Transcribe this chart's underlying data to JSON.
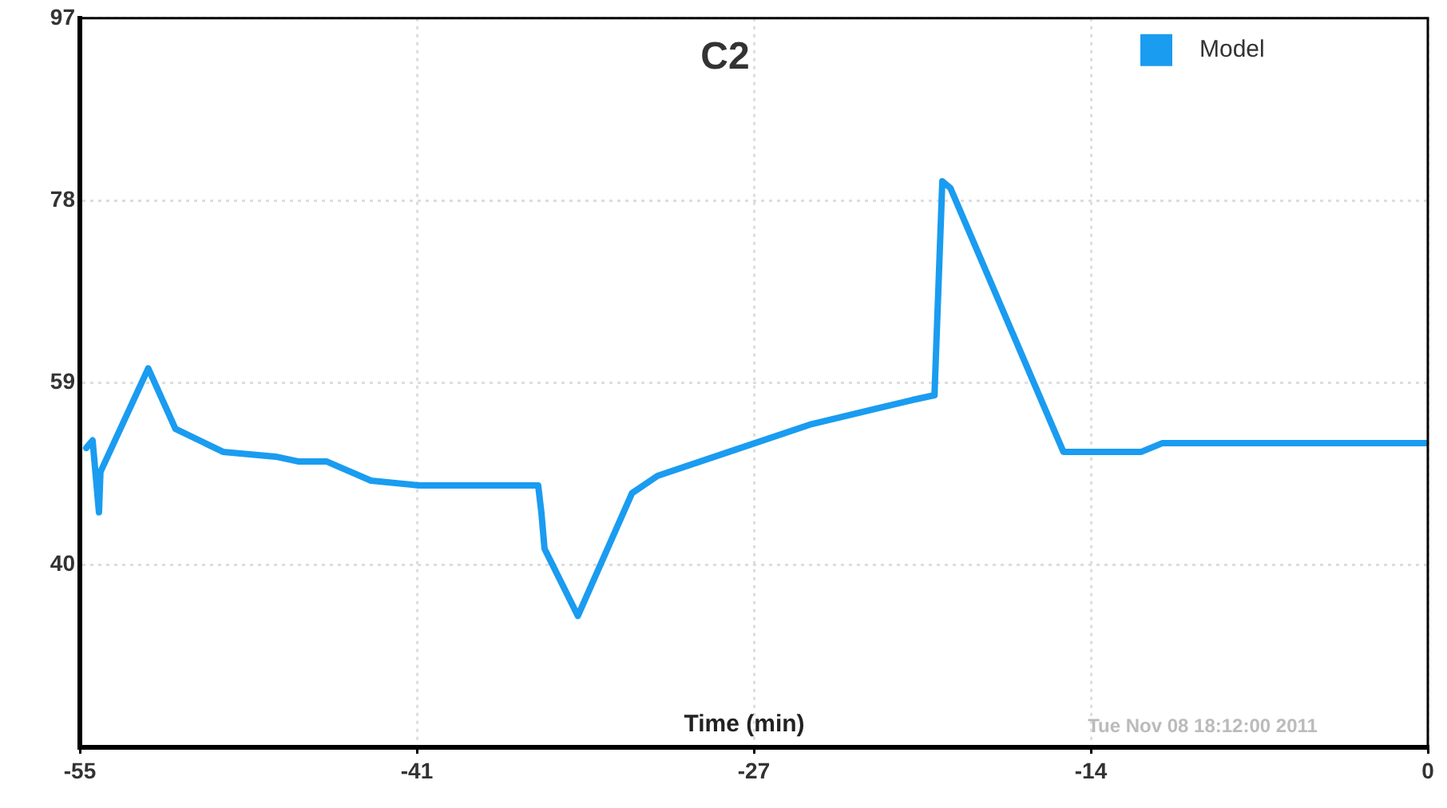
{
  "chart_data": {
    "type": "line",
    "title": "C2",
    "xlabel": "Time (min)",
    "annotations": [
      "Tue Nov 08 18:12:00 2011"
    ],
    "x": [
      -54.74,
      -54.48,
      -54.22,
      -54.16,
      -52.21,
      -51.1,
      -49.16,
      -47.01,
      -46.1,
      -44.94,
      -43.12,
      -41.17,
      -36.3,
      -36.17,
      -36.04,
      -34.68,
      -32.47,
      -31.43,
      -28.51,
      -25.13,
      -21.04,
      -20.13,
      -19.81,
      -19.48,
      -14.87,
      -11.69,
      -10.84,
      0
    ],
    "series": [
      {
        "name": "Model",
        "color": "#1a9cf0",
        "values": [
          52.2,
          53,
          45.5,
          49.7,
          60.5,
          54.2,
          51.8,
          51.3,
          50.8,
          50.8,
          48.8,
          48.3,
          48.3,
          45.5,
          41.7,
          34.7,
          47.5,
          49.3,
          51.8,
          54.7,
          57.2,
          57.7,
          80,
          79.3,
          51.8,
          51.8,
          52.7,
          52.7
        ]
      }
    ],
    "xlim": [
      -55,
      0
    ],
    "xticks": [
      -55,
      {
        "value": -41.25,
        "label": "-41"
      },
      {
        "value": -27.5,
        "label": "-27"
      },
      {
        "value": -13.75,
        "label": "-14"
      },
      0
    ],
    "ylim": [
      21,
      97
    ],
    "yticks": [
      40,
      59,
      78,
      97
    ],
    "grid": true,
    "legend": "top right",
    "marker": "none",
    "line_style": "solid"
  }
}
